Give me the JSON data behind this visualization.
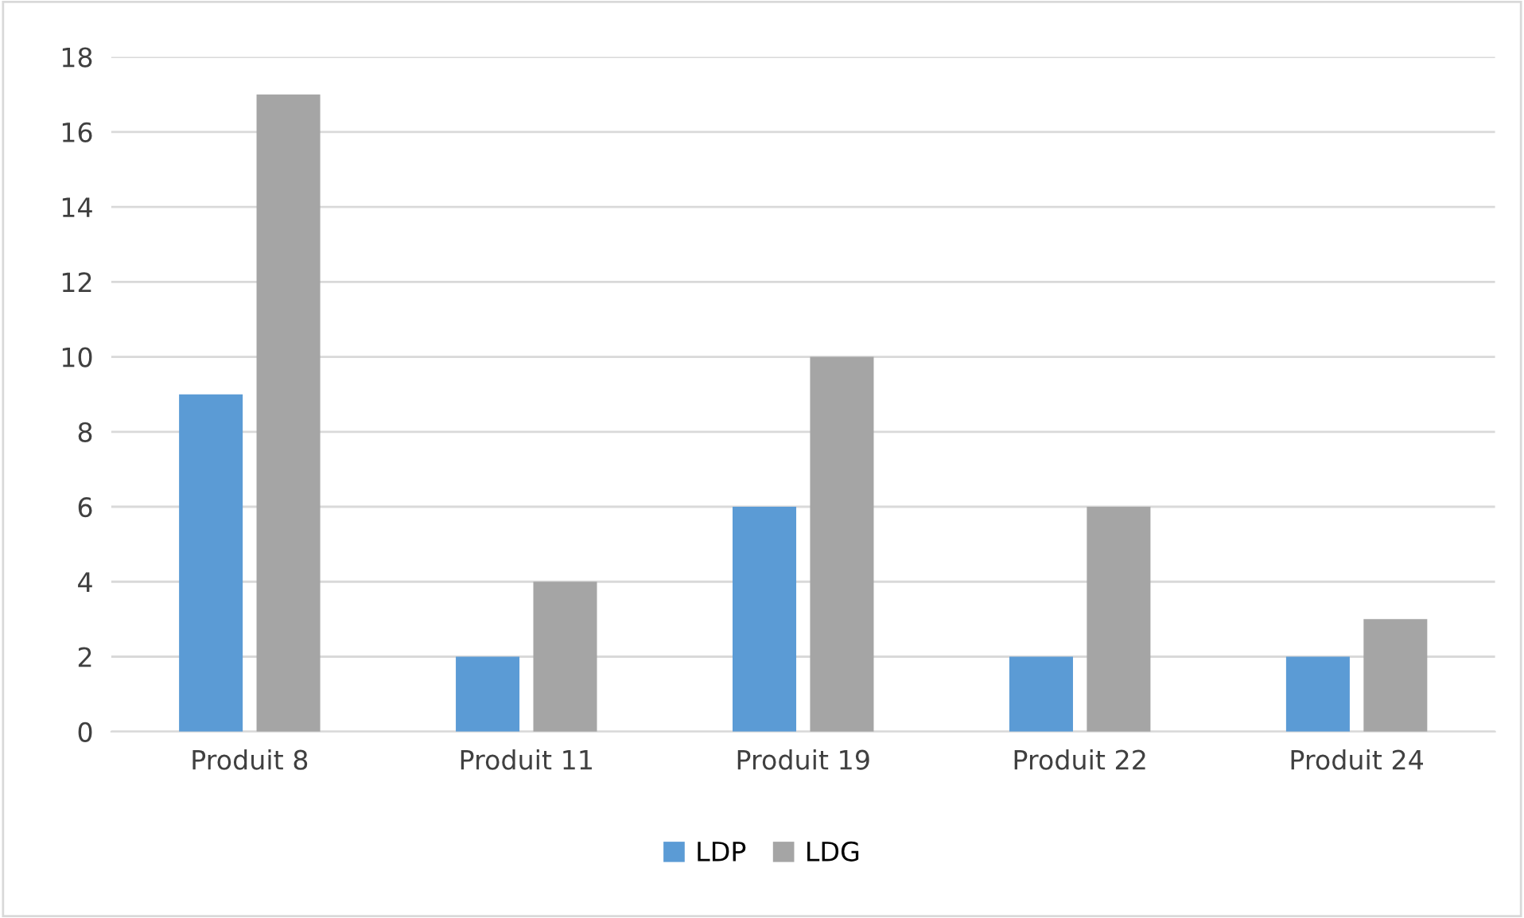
{
  "chart_data": {
    "type": "bar",
    "categories": [
      "Produit 8",
      "Produit 11",
      "Produit 19",
      "Produit 22",
      "Produit 24"
    ],
    "series": [
      {
        "name": "LDP",
        "color": "#5b9bd5",
        "values": [
          9,
          2,
          6,
          2,
          2
        ]
      },
      {
        "name": "LDG",
        "color": "#a5a5a5",
        "values": [
          17,
          4,
          10,
          6,
          3
        ]
      }
    ],
    "ylim": [
      0,
      18
    ],
    "yticks": [
      0,
      2,
      4,
      6,
      8,
      10,
      12,
      14,
      16,
      18
    ],
    "grid": "y",
    "legend": "bottom"
  }
}
